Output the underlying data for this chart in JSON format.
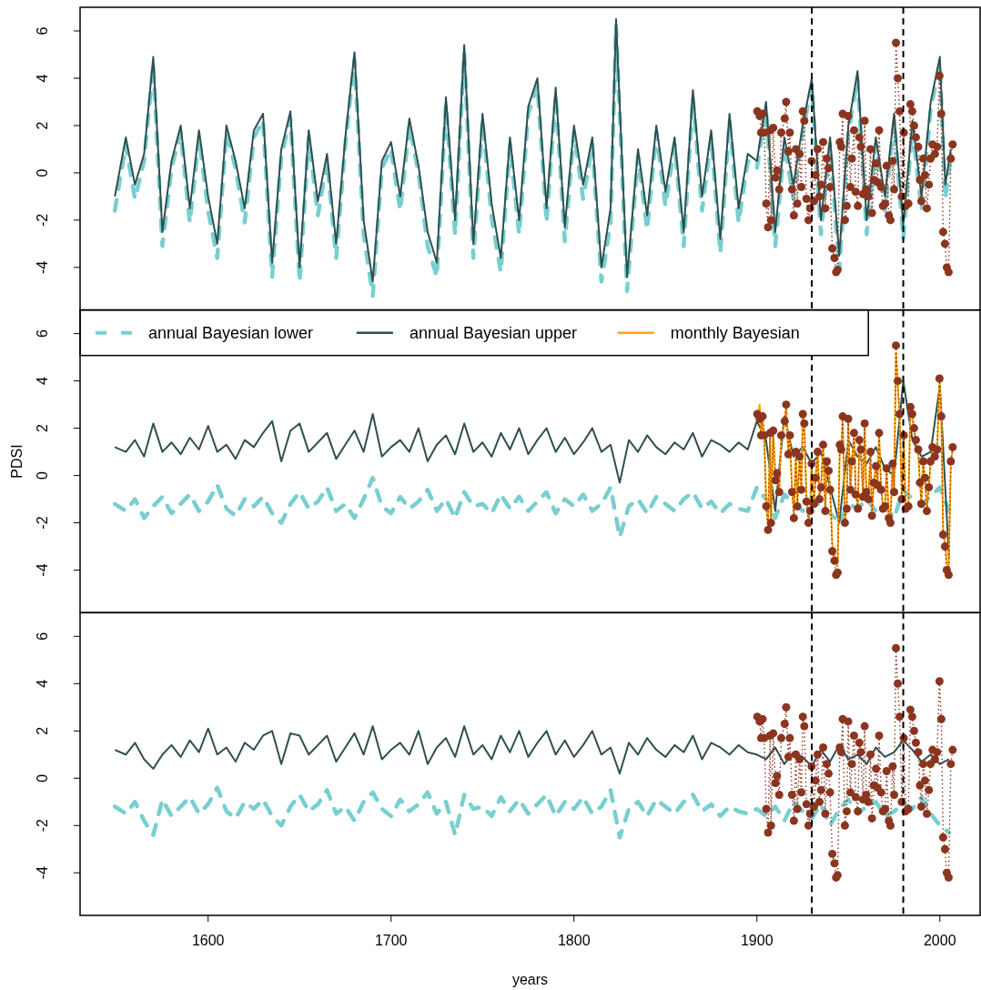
{
  "chart_data": [
    {
      "type": "line",
      "xlim": [
        1530,
        2022
      ],
      "ylim": [
        -5.8,
        7.0
      ],
      "yticks": [
        -4,
        -2,
        0,
        2,
        4,
        6
      ],
      "tick_labels": "y",
      "ref_lines": [
        {
          "axis": "x",
          "value": 1930,
          "color": "#000000",
          "line_style": "dashed"
        },
        {
          "axis": "x",
          "value": 1980,
          "color": "#000000",
          "line_style": "dashed"
        }
      ],
      "series": [
        {
          "color": "#79cfcf",
          "line_style": "dashed",
          "x": [
            1549,
            1555,
            1560,
            1565,
            1570,
            1575,
            1580,
            1585,
            1590,
            1595,
            1600,
            1605,
            1610,
            1615,
            1620,
            1625,
            1630,
            1635,
            1640,
            1645,
            1650,
            1655,
            1660,
            1665,
            1670,
            1675,
            1680,
            1685,
            1690,
            1695,
            1700,
            1705,
            1710,
            1715,
            1720,
            1725,
            1730,
            1735,
            1740,
            1745,
            1750,
            1755,
            1760,
            1765,
            1770,
            1775,
            1780,
            1785,
            1790,
            1795,
            1800,
            1805,
            1810,
            1815,
            1820,
            1823,
            1829,
            1835,
            1840,
            1845,
            1850,
            1855,
            1860,
            1865,
            1870,
            1875,
            1880,
            1885,
            1890,
            1895,
            1900,
            1905,
            1910,
            1915,
            1920,
            1925,
            1930,
            1935,
            1940,
            1945,
            1950,
            1955,
            1960,
            1965,
            1970,
            1975,
            1980,
            1985,
            1990,
            1995,
            2000,
            2003,
            2006
          ],
          "values": [
            -1.6,
            1.2,
            -1.1,
            0.5,
            4.6,
            -3.1,
            0.2,
            1.7,
            -2.1,
            1.5,
            -1.6,
            -3.6,
            1.7,
            0.2,
            -2.1,
            1.5,
            2.2,
            -4.4,
            0.7,
            2.3,
            -4.6,
            1.5,
            -1.8,
            0.5,
            -3.6,
            1.2,
            4.8,
            -2.6,
            -5.2,
            0.2,
            1.0,
            -1.6,
            2.0,
            0.0,
            -3.1,
            -4.4,
            2.9,
            -2.6,
            5.1,
            -3.6,
            2.2,
            -1.9,
            -4.2,
            1.2,
            -2.6,
            2.5,
            3.7,
            -2.1,
            3.3,
            -2.9,
            1.7,
            -1.1,
            1.2,
            -4.6,
            -2.1,
            6.2,
            -5.0,
            0.7,
            -2.4,
            1.7,
            -1.4,
            1.2,
            -3.1,
            3.2,
            -1.6,
            1.5,
            -3.4,
            2.2,
            -2.1,
            0.5,
            0.2,
            2.7,
            -3.1,
            1.2,
            -1.1,
            1.7,
            3.7,
            -2.6,
            1.2,
            -4.1,
            1.7,
            4.0,
            -2.6,
            1.2,
            -1.6,
            2.2,
            -2.8,
            1.9,
            -1.6,
            2.7,
            4.6,
            -1.1,
            0.7
          ]
        },
        {
          "color": "#2f4f4f",
          "line_style": "solid",
          "x": [
            1549,
            1555,
            1560,
            1565,
            1570,
            1575,
            1580,
            1585,
            1590,
            1595,
            1600,
            1605,
            1610,
            1615,
            1620,
            1625,
            1630,
            1635,
            1640,
            1645,
            1650,
            1655,
            1660,
            1665,
            1670,
            1675,
            1680,
            1685,
            1690,
            1695,
            1700,
            1705,
            1710,
            1715,
            1720,
            1725,
            1730,
            1735,
            1740,
            1745,
            1750,
            1755,
            1760,
            1765,
            1770,
            1775,
            1780,
            1785,
            1790,
            1795,
            1800,
            1805,
            1810,
            1815,
            1820,
            1823,
            1829,
            1835,
            1840,
            1845,
            1850,
            1855,
            1860,
            1865,
            1870,
            1875,
            1880,
            1885,
            1890,
            1895,
            1900,
            1905,
            1910,
            1915,
            1920,
            1925,
            1930,
            1935,
            1940,
            1945,
            1950,
            1955,
            1960,
            1965,
            1970,
            1975,
            1980,
            1985,
            1990,
            1995,
            2000,
            2003,
            2006
          ],
          "values": [
            -1.0,
            1.5,
            -0.5,
            0.8,
            4.9,
            -2.5,
            0.5,
            2.0,
            -1.5,
            1.8,
            -1.0,
            -3.0,
            2.0,
            0.5,
            -1.5,
            1.8,
            2.5,
            -3.8,
            1.0,
            2.6,
            -4.0,
            1.8,
            -1.2,
            0.8,
            -3.0,
            1.5,
            5.1,
            -2.0,
            -4.6,
            0.5,
            1.3,
            -1.0,
            2.3,
            0.3,
            -2.5,
            -3.8,
            3.2,
            -2.0,
            5.4,
            -3.0,
            2.5,
            -1.3,
            -3.6,
            1.5,
            -2.0,
            2.8,
            4.0,
            -1.5,
            3.6,
            -2.3,
            2.0,
            -0.5,
            1.5,
            -4.0,
            -1.5,
            6.5,
            -4.4,
            1.0,
            -1.8,
            2.0,
            -0.8,
            1.5,
            -2.5,
            3.5,
            -1.0,
            1.8,
            -2.8,
            2.5,
            -1.5,
            0.8,
            0.5,
            3.0,
            -2.5,
            1.5,
            -0.5,
            2.0,
            4.0,
            -2.0,
            1.5,
            -3.5,
            2.0,
            4.3,
            -2.0,
            1.5,
            -1.0,
            2.5,
            -2.2,
            2.2,
            -1.0,
            3.0,
            4.9,
            -0.5,
            1.0
          ]
        },
        {
          "color": "#8b3520",
          "line_style": "dotted",
          "marker": "circle",
          "x": [
            1900.2,
            1901.5,
            1902.3,
            1903.1,
            1904.0,
            1905.1,
            1906.1,
            1907.2,
            1907.7,
            1908.9,
            1910.2,
            1911.0,
            1912.2,
            1913.3,
            1915.2,
            1916.0,
            1917.2,
            1918.0,
            1919.2,
            1920.2,
            1921.3,
            1922.1,
            1923.3,
            1924.3,
            1925.1,
            1925.9,
            1927.1,
            1928.2,
            1929.1,
            1929.9,
            1931.2,
            1932.1,
            1933.2,
            1934.2,
            1935.1,
            1936.2,
            1937.4,
            1938.2,
            1939.2,
            1940.0,
            1941.2,
            1942.4,
            1943.3,
            1944.1,
            1945.3,
            1946.1,
            1946.9,
            1948.1,
            1949.1,
            1949.9,
            1951.1,
            1951.9,
            1953.1,
            1954.0,
            1955.2,
            1956.0,
            1956.8,
            1958.0,
            1958.9,
            1959.8,
            1960.9,
            1962.1,
            1962.9,
            1963.9,
            1965.1,
            1965.9,
            1966.8,
            1967.9,
            1968.9,
            1970.1,
            1970.9,
            1972.1,
            1973.0,
            1974.2,
            1975.0,
            1976.0,
            1977.0,
            1978.0,
            1979.2,
            1980.3,
            1981.3,
            1982.8,
            1983.9,
            1984.9,
            1985.9,
            1986.9,
            1988.2,
            1989.1,
            1989.9,
            1990.9,
            1991.9,
            1992.9,
            1994.0,
            1994.9,
            1996.0,
            1997.3,
            1998.5,
            1999.8,
            2000.8,
            2001.8,
            2002.8,
            2003.8,
            2004.8,
            2006.0,
            2007.0
          ],
          "values": [
            2.6,
            2.4,
            1.7,
            2.5,
            1.7,
            -1.3,
            -2.3,
            1.8,
            -2.0,
            1.9,
            -0.2,
            0.1,
            -0.7,
            1.7,
            2.3,
            3.0,
            0.9,
            1.7,
            -0.7,
            -1.8,
            1.0,
            -1.3,
            0.8,
            -0.6,
            2.6,
            2.2,
            -1.1,
            -2.0,
            -1.5,
            0.5,
            -1.2,
            -0.1,
            1.0,
            -1.0,
            -0.5,
            1.3,
            -1.5,
            0.6,
            0.2,
            -0.6,
            -3.2,
            -3.6,
            -4.2,
            -4.1,
            1.3,
            1.1,
            2.5,
            -2.0,
            -1.4,
            2.4,
            -0.6,
            0.6,
            1.8,
            -0.8,
            -1.4,
            1.5,
            1.1,
            -0.9,
            2.2,
            -0.7,
            -1.0,
            1.0,
            -1.7,
            -0.3,
            0.4,
            -0.4,
            1.8,
            -0.6,
            -1.4,
            -1.3,
            0.3,
            -1.8,
            -2.0,
            0.5,
            -0.7,
            5.5,
            4.0,
            2.6,
            -1.0,
            1.7,
            -1.4,
            -1.3,
            2.9,
            2.6,
            2.0,
            1.5,
            1.1,
            -0.3,
            -1.2,
            0.6,
            -0.1,
            -1.5,
            -0.5,
            0.6,
            1.2,
            0.8,
            1.1,
            4.1,
            2.5,
            -2.5,
            -3.0,
            -4.0,
            -4.2,
            0.6,
            1.2
          ]
        }
      ]
    },
    {
      "type": "line",
      "xlim": [
        1530,
        2022
      ],
      "ylim": [
        -5.8,
        7.0
      ],
      "yticks": [
        -4,
        -2,
        0,
        2,
        4,
        6
      ],
      "tick_labels": "y",
      "ylabel": "PDSI",
      "legend": "top left",
      "ref_lines": [
        {
          "axis": "x",
          "value": 1930,
          "color": "#000000",
          "line_style": "dashed"
        },
        {
          "axis": "x",
          "value": 1980,
          "color": "#000000",
          "line_style": "dashed"
        }
      ],
      "series": [
        {
          "name": "annual Bayesian lower",
          "color": "#79cfcf",
          "line_style": "dashed",
          "x": [
            1549,
            1555,
            1560,
            1565,
            1570,
            1575,
            1580,
            1585,
            1590,
            1595,
            1600,
            1605,
            1610,
            1615,
            1620,
            1625,
            1630,
            1635,
            1640,
            1645,
            1650,
            1655,
            1660,
            1665,
            1670,
            1675,
            1680,
            1685,
            1690,
            1695,
            1700,
            1705,
            1710,
            1715,
            1720,
            1725,
            1730,
            1735,
            1740,
            1745,
            1750,
            1755,
            1760,
            1765,
            1770,
            1775,
            1780,
            1785,
            1790,
            1795,
            1800,
            1805,
            1810,
            1815,
            1820,
            1825,
            1830,
            1835,
            1840,
            1845,
            1850,
            1855,
            1860,
            1865,
            1870,
            1875,
            1880,
            1885,
            1890,
            1895,
            1900,
            1905,
            1910,
            1915,
            1920,
            1925,
            1930,
            1935,
            1940,
            1945,
            1950,
            1955,
            1960,
            1965,
            1970,
            1975,
            1980,
            1985,
            1990,
            1995,
            2000,
            2005
          ],
          "values": [
            -1.2,
            -1.5,
            -1.0,
            -1.8,
            -1.3,
            -0.9,
            -1.6,
            -1.2,
            -0.8,
            -1.5,
            -1.1,
            -0.4,
            -1.4,
            -1.7,
            -1.0,
            -1.3,
            -0.9,
            -1.6,
            -2.0,
            -1.2,
            -0.7,
            -1.4,
            -1.1,
            -0.5,
            -1.5,
            -1.2,
            -1.8,
            -1.0,
            -0.1,
            -1.3,
            -1.6,
            -0.9,
            -1.4,
            -1.1,
            -0.6,
            -1.5,
            -1.0,
            -1.8,
            -0.7,
            -1.3,
            -1.2,
            -1.6,
            -0.8,
            -1.4,
            -0.9,
            -1.5,
            -1.1,
            -0.7,
            -1.6,
            -1.0,
            -1.3,
            -0.8,
            -1.5,
            -1.2,
            -0.5,
            -2.6,
            -1.3,
            -1.0,
            -1.6,
            -0.9,
            -1.2,
            -1.5,
            -1.0,
            -0.7,
            -1.4,
            -1.1,
            -1.6,
            -1.2,
            -1.4,
            -1.5,
            -0.5,
            -1.0,
            -1.8,
            -0.8,
            -1.2,
            -1.5,
            -1.0,
            -1.3,
            -1.6,
            -2.0,
            -1.2,
            -1.4,
            -1.0,
            -1.5,
            -1.3,
            -1.8,
            -0.6,
            -1.0,
            -1.2,
            -0.9,
            -0.5,
            -1.5
          ]
        },
        {
          "name": "annual Bayesian upper",
          "color": "#2f4f4f",
          "line_style": "solid",
          "x": [
            1549,
            1555,
            1560,
            1565,
            1570,
            1575,
            1580,
            1585,
            1590,
            1595,
            1600,
            1605,
            1610,
            1615,
            1620,
            1625,
            1630,
            1635,
            1640,
            1645,
            1650,
            1655,
            1660,
            1665,
            1670,
            1675,
            1680,
            1685,
            1690,
            1695,
            1700,
            1705,
            1710,
            1715,
            1720,
            1725,
            1730,
            1735,
            1740,
            1745,
            1750,
            1755,
            1760,
            1765,
            1770,
            1775,
            1780,
            1785,
            1790,
            1795,
            1800,
            1805,
            1810,
            1815,
            1820,
            1825,
            1830,
            1835,
            1840,
            1845,
            1850,
            1855,
            1860,
            1865,
            1870,
            1875,
            1880,
            1885,
            1890,
            1895,
            1900,
            1905,
            1910,
            1915,
            1920,
            1925,
            1930,
            1935,
            1940,
            1945,
            1950,
            1955,
            1960,
            1965,
            1970,
            1975,
            1980,
            1985,
            1990,
            1995,
            2000,
            2005
          ],
          "values": [
            1.2,
            1.0,
            1.5,
            0.8,
            2.2,
            1.0,
            1.4,
            0.9,
            1.6,
            1.1,
            2.1,
            1.0,
            1.3,
            0.7,
            1.5,
            1.2,
            1.8,
            2.3,
            0.6,
            1.9,
            2.2,
            1.0,
            1.4,
            1.8,
            0.7,
            1.3,
            1.9,
            1.0,
            2.6,
            0.8,
            1.2,
            1.5,
            1.0,
            2.0,
            0.6,
            1.3,
            1.7,
            0.9,
            2.2,
            1.0,
            1.4,
            0.8,
            1.8,
            1.1,
            2.0,
            0.9,
            1.5,
            2.0,
            1.0,
            1.6,
            0.9,
            1.4,
            2.0,
            1.0,
            1.3,
            -0.3,
            1.5,
            1.0,
            1.7,
            1.2,
            0.9,
            1.4,
            1.1,
            1.8,
            0.8,
            1.5,
            1.3,
            1.0,
            1.4,
            1.1,
            2.3,
            1.5,
            -1.5,
            2.5,
            0.8,
            1.2,
            0.5,
            1.0,
            -0.5,
            -2.0,
            1.5,
            0.8,
            0.5,
            1.2,
            0.3,
            0.0,
            4.0,
            1.5,
            0.8,
            1.0,
            3.8,
            -3.5
          ]
        },
        {
          "name": "monthly Bayesian",
          "color": "#ffa500",
          "line_style": "solid",
          "x": [
            1900.2,
            1901.5,
            1902.3,
            1903.1,
            1904.0,
            1905.1,
            1906.1,
            1907.2,
            1907.7,
            1908.9,
            1910.2,
            1911.0,
            1912.2,
            1913.3,
            1915.2,
            1916.0,
            1917.2,
            1918.0,
            1919.2,
            1920.2,
            1921.3,
            1922.1,
            1923.3,
            1924.3,
            1925.1,
            1925.9,
            1927.1,
            1928.2,
            1929.1,
            1929.9,
            1931.2,
            1932.1,
            1933.2,
            1934.2,
            1935.1,
            1936.2,
            1937.4,
            1938.2,
            1939.2,
            1940.0,
            1941.2,
            1942.4,
            1943.3,
            1944.1,
            1945.3,
            1946.1,
            1946.9,
            1948.1,
            1949.1,
            1949.9,
            1951.1,
            1951.9,
            1953.1,
            1954.0,
            1955.2,
            1956.0,
            1956.8,
            1958.0,
            1958.9,
            1959.8,
            1960.9,
            1962.1,
            1962.9,
            1963.9,
            1965.1,
            1965.9,
            1966.8,
            1967.9,
            1968.9,
            1970.1,
            1970.9,
            1972.1,
            1973.0,
            1974.2,
            1975.0,
            1976.0,
            1977.0,
            1978.0,
            1979.2,
            1980.3,
            1981.3,
            1982.8,
            1983.9,
            1984.9,
            1985.9,
            1986.9,
            1988.2,
            1989.1,
            1989.9,
            1990.9,
            1991.9,
            1992.9,
            1994.0,
            1994.9,
            1996.0,
            1997.3,
            1998.5,
            1999.8,
            2000.8,
            2001.8,
            2002.8,
            2003.8,
            2004.8,
            2006.0,
            2007.0
          ],
          "values": [
            2.5,
            3.0,
            1.6,
            2.4,
            1.6,
            -1.2,
            -2.1,
            1.7,
            -1.8,
            1.8,
            -0.2,
            0.1,
            -0.6,
            1.6,
            2.2,
            3.0,
            0.8,
            1.6,
            -0.6,
            -1.6,
            0.9,
            -1.2,
            0.7,
            -0.5,
            2.7,
            2.1,
            -1.0,
            -1.8,
            -1.4,
            0.5,
            -1.1,
            -0.1,
            0.9,
            -0.9,
            -0.4,
            1.2,
            -1.4,
            0.5,
            0.2,
            -0.5,
            -2.9,
            -3.3,
            -3.8,
            -3.7,
            1.2,
            1.0,
            2.4,
            -1.8,
            -1.3,
            2.3,
            -0.5,
            0.5,
            1.7,
            -0.7,
            -1.3,
            1.4,
            1.0,
            -0.8,
            2.1,
            -0.6,
            -0.9,
            0.9,
            -1.6,
            -0.3,
            0.4,
            -0.4,
            1.7,
            -0.5,
            -1.3,
            -1.2,
            0.3,
            -1.7,
            -1.8,
            0.5,
            -0.6,
            5.2,
            3.8,
            2.5,
            -0.9,
            1.6,
            -1.3,
            -1.2,
            2.8,
            2.5,
            1.9,
            1.4,
            1.0,
            -0.3,
            -1.1,
            0.5,
            -0.1,
            -1.4,
            -0.4,
            0.5,
            1.1,
            0.7,
            1.0,
            3.9,
            2.4,
            -2.3,
            -2.8,
            -3.7,
            -3.9,
            0.5,
            1.1
          ]
        },
        {
          "color": "#8b3520",
          "line_style": "dotted",
          "marker": "circle",
          "x": [
            1900.2,
            1901.5,
            1902.3,
            1903.1,
            1904.0,
            1905.1,
            1906.1,
            1907.2,
            1907.7,
            1908.9,
            1910.2,
            1911.0,
            1912.2,
            1913.3,
            1915.2,
            1916.0,
            1917.2,
            1918.0,
            1919.2,
            1920.2,
            1921.3,
            1922.1,
            1923.3,
            1924.3,
            1925.1,
            1925.9,
            1927.1,
            1928.2,
            1929.1,
            1929.9,
            1931.2,
            1932.1,
            1933.2,
            1934.2,
            1935.1,
            1936.2,
            1937.4,
            1938.2,
            1939.2,
            1940.0,
            1941.2,
            1942.4,
            1943.3,
            1944.1,
            1945.3,
            1946.1,
            1946.9,
            1948.1,
            1949.1,
            1949.9,
            1951.1,
            1951.9,
            1953.1,
            1954.0,
            1955.2,
            1956.0,
            1956.8,
            1958.0,
            1958.9,
            1959.8,
            1960.9,
            1962.1,
            1962.9,
            1963.9,
            1965.1,
            1965.9,
            1966.8,
            1967.9,
            1968.9,
            1970.1,
            1970.9,
            1972.1,
            1973.0,
            1974.2,
            1975.0,
            1976.0,
            1977.0,
            1978.0,
            1979.2,
            1980.3,
            1981.3,
            1982.8,
            1983.9,
            1984.9,
            1985.9,
            1986.9,
            1988.2,
            1989.1,
            1989.9,
            1990.9,
            1991.9,
            1992.9,
            1994.0,
            1994.9,
            1996.0,
            1997.3,
            1998.5,
            1999.8,
            2000.8,
            2001.8,
            2002.8,
            2003.8,
            2004.8,
            2006.0,
            2007.0
          ],
          "values": [
            2.6,
            2.4,
            1.7,
            2.5,
            1.7,
            -1.3,
            -2.3,
            1.8,
            -2.0,
            1.9,
            -0.2,
            0.1,
            -0.7,
            1.7,
            2.3,
            3.0,
            0.9,
            1.7,
            -0.7,
            -1.8,
            1.0,
            -1.3,
            0.8,
            -0.6,
            2.6,
            2.2,
            -1.1,
            -2.0,
            -1.5,
            0.5,
            -1.2,
            -0.1,
            1.0,
            -1.0,
            -0.5,
            1.3,
            -1.5,
            0.6,
            0.2,
            -0.6,
            -3.2,
            -3.6,
            -4.2,
            -4.1,
            1.3,
            1.1,
            2.5,
            -2.0,
            -1.4,
            2.4,
            -0.6,
            0.6,
            1.8,
            -0.8,
            -1.4,
            1.5,
            1.1,
            -0.9,
            2.2,
            -0.7,
            -1.0,
            1.0,
            -1.7,
            -0.3,
            0.4,
            -0.4,
            1.8,
            -0.6,
            -1.4,
            -1.3,
            0.3,
            -1.8,
            -2.0,
            0.5,
            -0.7,
            5.5,
            4.0,
            2.6,
            -1.0,
            1.7,
            -1.4,
            -1.3,
            2.9,
            2.6,
            2.0,
            1.5,
            1.1,
            -0.3,
            -1.2,
            0.6,
            -0.1,
            -1.5,
            -0.5,
            0.6,
            1.2,
            0.8,
            1.1,
            4.1,
            2.5,
            -2.5,
            -3.0,
            -4.0,
            -4.2,
            0.6,
            1.2
          ]
        }
      ]
    },
    {
      "type": "line",
      "xlim": [
        1530,
        2022
      ],
      "ylim": [
        -5.8,
        7.0
      ],
      "xticks": [
        1600,
        1700,
        1800,
        1900,
        2000
      ],
      "yticks": [
        -4,
        -2,
        0,
        2,
        4,
        6
      ],
      "xlabel": "years",
      "ref_lines": [
        {
          "axis": "x",
          "value": 1930,
          "color": "#000000",
          "line_style": "dashed"
        },
        {
          "axis": "x",
          "value": 1980,
          "color": "#000000",
          "line_style": "dashed"
        }
      ],
      "series": [
        {
          "color": "#79cfcf",
          "line_style": "dashed",
          "x": [
            1549,
            1555,
            1560,
            1565,
            1570,
            1575,
            1580,
            1585,
            1590,
            1595,
            1600,
            1605,
            1610,
            1615,
            1620,
            1625,
            1630,
            1635,
            1640,
            1645,
            1650,
            1655,
            1660,
            1665,
            1670,
            1675,
            1680,
            1685,
            1690,
            1695,
            1700,
            1705,
            1710,
            1715,
            1720,
            1725,
            1730,
            1735,
            1740,
            1745,
            1750,
            1755,
            1760,
            1765,
            1770,
            1775,
            1780,
            1785,
            1790,
            1795,
            1800,
            1805,
            1810,
            1815,
            1820,
            1825,
            1830,
            1835,
            1840,
            1845,
            1850,
            1855,
            1860,
            1865,
            1870,
            1875,
            1880,
            1885,
            1890,
            1895,
            1900,
            1905,
            1910,
            1915,
            1920,
            1925,
            1930,
            1935,
            1940,
            1945,
            1950,
            1955,
            1960,
            1965,
            1970,
            1975,
            1980,
            1985,
            1990,
            1995,
            2000,
            2005
          ],
          "values": [
            -1.2,
            -1.5,
            -1.0,
            -1.8,
            -2.4,
            -0.9,
            -1.6,
            -1.2,
            -0.8,
            -1.5,
            -1.1,
            -0.4,
            -1.4,
            -1.7,
            -1.0,
            -1.3,
            -0.9,
            -1.6,
            -2.0,
            -1.2,
            -0.7,
            -1.4,
            -1.1,
            -0.5,
            -1.5,
            -1.2,
            -1.8,
            -1.0,
            -0.6,
            -1.3,
            -1.6,
            -0.9,
            -1.4,
            -1.1,
            -0.6,
            -1.5,
            -1.0,
            -2.4,
            -0.7,
            -1.3,
            -1.2,
            -1.6,
            -0.8,
            -1.4,
            -0.9,
            -1.5,
            -1.1,
            -0.7,
            -1.6,
            -1.0,
            -1.3,
            -0.8,
            -1.5,
            -1.2,
            -0.5,
            -2.5,
            -1.3,
            -1.0,
            -1.6,
            -0.9,
            -1.2,
            -1.5,
            -1.0,
            -0.7,
            -1.4,
            -1.1,
            -1.6,
            -1.2,
            -1.4,
            -1.5,
            -1.3,
            -1.6,
            -1.2,
            -1.8,
            -1.0,
            -1.4,
            -1.7,
            -1.1,
            -2.0,
            -1.3,
            -0.9,
            -1.5,
            -1.2,
            -1.0,
            -1.6,
            -1.4,
            -1.1,
            -1.3,
            -0.8,
            -1.5,
            -2.0,
            -2.3
          ]
        },
        {
          "color": "#2f4f4f",
          "line_style": "solid",
          "x": [
            1549,
            1555,
            1560,
            1565,
            1570,
            1575,
            1580,
            1585,
            1590,
            1595,
            1600,
            1605,
            1610,
            1615,
            1620,
            1625,
            1630,
            1635,
            1640,
            1645,
            1650,
            1655,
            1660,
            1665,
            1670,
            1675,
            1680,
            1685,
            1690,
            1695,
            1700,
            1705,
            1710,
            1715,
            1720,
            1725,
            1730,
            1735,
            1740,
            1745,
            1750,
            1755,
            1760,
            1765,
            1770,
            1775,
            1780,
            1785,
            1790,
            1795,
            1800,
            1805,
            1810,
            1815,
            1820,
            1825,
            1830,
            1835,
            1840,
            1845,
            1850,
            1855,
            1860,
            1865,
            1870,
            1875,
            1880,
            1885,
            1890,
            1895,
            1900,
            1905,
            1910,
            1915,
            1920,
            1925,
            1930,
            1935,
            1940,
            1945,
            1950,
            1955,
            1960,
            1965,
            1970,
            1975,
            1980,
            1985,
            1990,
            1995,
            2000,
            2005
          ],
          "values": [
            1.2,
            1.0,
            1.5,
            0.8,
            0.4,
            1.0,
            1.4,
            0.9,
            1.6,
            1.1,
            2.1,
            1.0,
            1.3,
            0.7,
            1.5,
            1.2,
            1.8,
            2.0,
            0.6,
            1.9,
            1.8,
            1.0,
            1.4,
            1.8,
            0.7,
            1.3,
            1.9,
            1.0,
            2.2,
            0.8,
            1.2,
            1.5,
            1.0,
            2.0,
            0.6,
            1.3,
            1.7,
            0.9,
            2.2,
            1.0,
            1.4,
            0.8,
            1.8,
            1.1,
            2.0,
            0.9,
            1.5,
            2.0,
            1.0,
            1.6,
            0.9,
            1.4,
            2.0,
            1.0,
            1.3,
            0.2,
            1.5,
            1.0,
            1.7,
            1.2,
            0.9,
            1.4,
            1.1,
            1.8,
            0.8,
            1.5,
            1.3,
            1.0,
            1.4,
            1.1,
            1.0,
            0.8,
            1.3,
            0.6,
            1.1,
            0.9,
            0.5,
            1.2,
            0.7,
            1.4,
            0.8,
            1.0,
            0.6,
            1.3,
            0.9,
            1.1,
            1.6,
            1.2,
            0.7,
            1.0,
            0.6,
            0.8
          ]
        },
        {
          "color": "#8b3520",
          "line_style": "dotted",
          "marker": "circle",
          "x": [
            1900.2,
            1901.5,
            1902.3,
            1903.1,
            1904.0,
            1905.1,
            1906.1,
            1907.2,
            1907.7,
            1908.9,
            1910.2,
            1911.0,
            1912.2,
            1913.3,
            1915.2,
            1916.0,
            1917.2,
            1918.0,
            1919.2,
            1920.2,
            1921.3,
            1922.1,
            1923.3,
            1924.3,
            1925.1,
            1925.9,
            1927.1,
            1928.2,
            1929.1,
            1929.9,
            1931.2,
            1932.1,
            1933.2,
            1934.2,
            1935.1,
            1936.2,
            1937.4,
            1938.2,
            1939.2,
            1940.0,
            1941.2,
            1942.4,
            1943.3,
            1944.1,
            1945.3,
            1946.1,
            1946.9,
            1948.1,
            1949.1,
            1949.9,
            1951.1,
            1951.9,
            1953.1,
            1954.0,
            1955.2,
            1956.0,
            1956.8,
            1958.0,
            1958.9,
            1959.8,
            1960.9,
            1962.1,
            1962.9,
            1963.9,
            1965.1,
            1965.9,
            1966.8,
            1967.9,
            1968.9,
            1970.1,
            1970.9,
            1972.1,
            1973.0,
            1974.2,
            1975.0,
            1976.0,
            1977.0,
            1978.0,
            1979.2,
            1980.3,
            1981.3,
            1982.8,
            1983.9,
            1984.9,
            1985.9,
            1986.9,
            1988.2,
            1989.1,
            1989.9,
            1990.9,
            1991.9,
            1992.9,
            1994.0,
            1994.9,
            1996.0,
            1997.3,
            1998.5,
            1999.8,
            2000.8,
            2001.8,
            2002.8,
            2003.8,
            2004.8,
            2006.0,
            2007.0
          ],
          "values": [
            2.6,
            2.4,
            1.7,
            2.5,
            1.7,
            -1.3,
            -2.3,
            1.8,
            -2.0,
            1.9,
            -0.2,
            0.1,
            -0.7,
            1.7,
            2.3,
            3.0,
            0.9,
            1.7,
            -0.7,
            -1.8,
            1.0,
            -1.3,
            0.8,
            -0.6,
            2.6,
            2.2,
            -1.1,
            -2.0,
            -1.5,
            0.5,
            -1.2,
            -0.1,
            1.0,
            -1.0,
            -0.5,
            1.3,
            -1.5,
            0.6,
            0.2,
            -0.6,
            -3.2,
            -3.6,
            -4.2,
            -4.1,
            1.3,
            1.1,
            2.5,
            -2.0,
            -1.4,
            2.4,
            -0.6,
            0.6,
            1.8,
            -0.8,
            -1.4,
            1.5,
            1.1,
            -0.9,
            2.2,
            -0.7,
            -1.0,
            1.0,
            -1.7,
            -0.3,
            0.4,
            -0.4,
            1.8,
            -0.6,
            -1.4,
            -1.3,
            0.3,
            -1.8,
            -2.0,
            0.5,
            -0.7,
            5.5,
            4.0,
            2.6,
            -1.0,
            1.7,
            -1.4,
            -1.3,
            2.9,
            2.6,
            2.0,
            1.5,
            1.1,
            -0.3,
            -1.2,
            0.6,
            -0.1,
            -1.5,
            -0.5,
            0.6,
            1.2,
            0.8,
            1.1,
            4.1,
            2.5,
            -2.5,
            -3.0,
            -4.0,
            -4.2,
            0.6,
            1.2
          ]
        }
      ]
    }
  ]
}
